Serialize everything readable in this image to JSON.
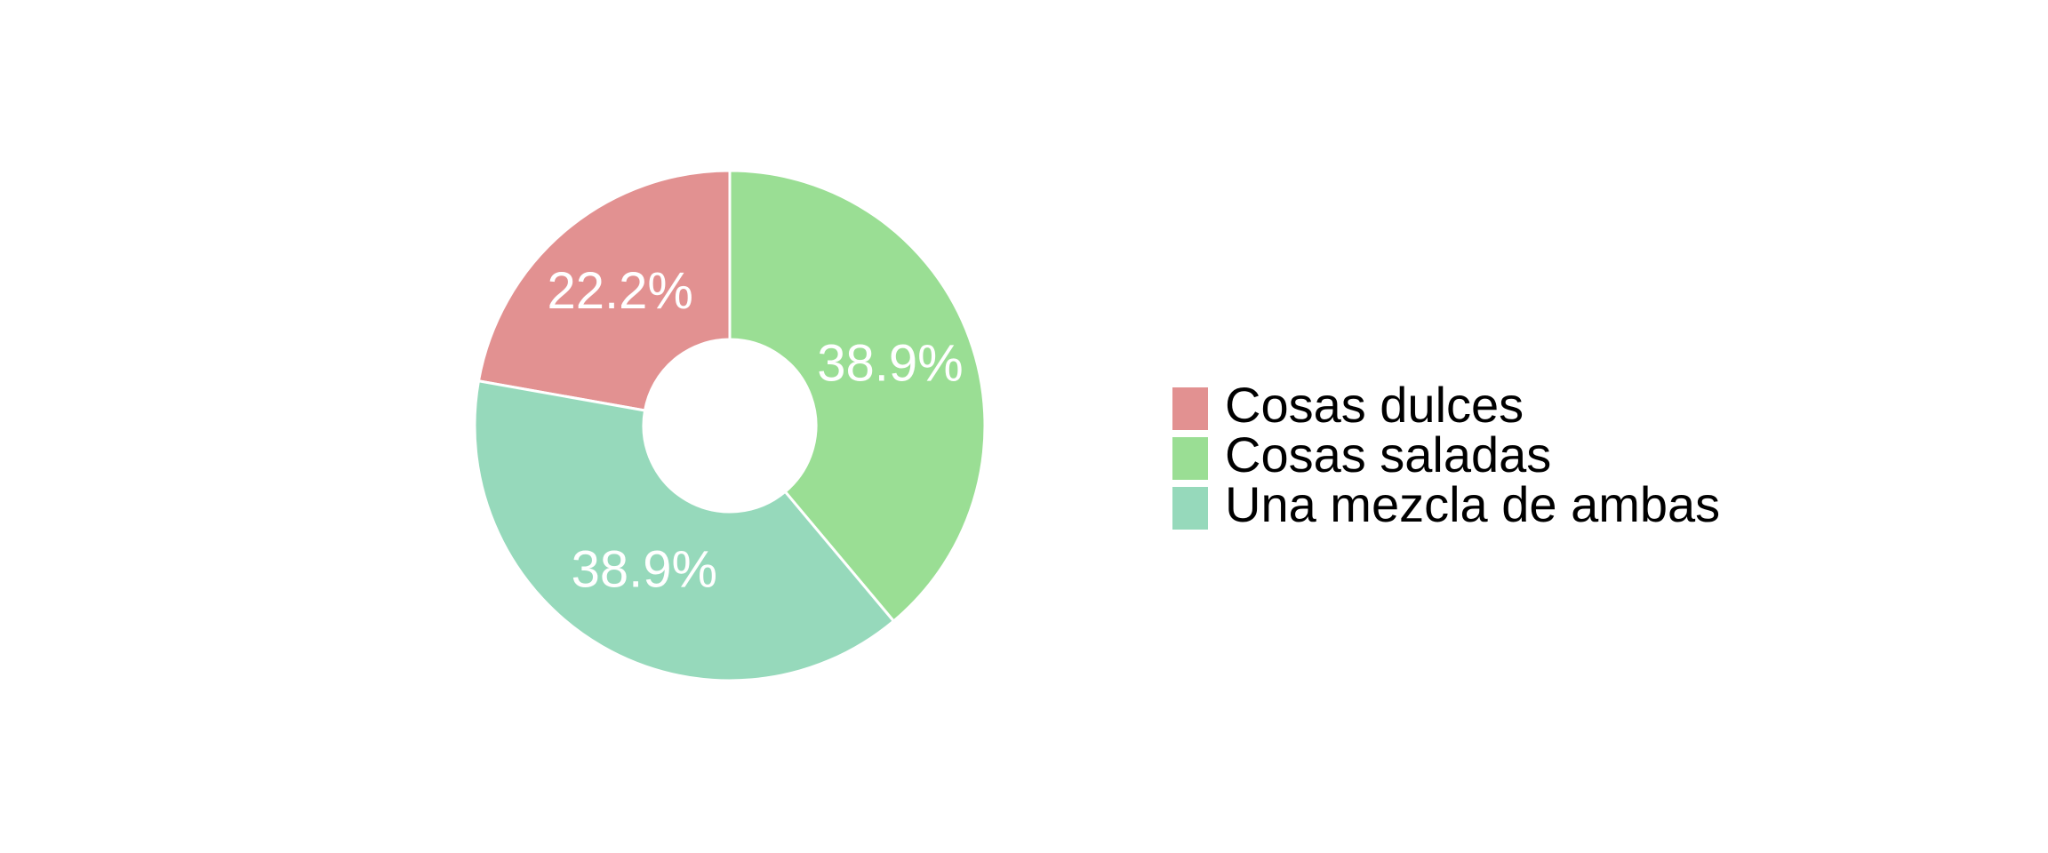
{
  "chart_data": {
    "type": "pie",
    "categories": [
      "Cosas dulces",
      "Cosas saladas",
      "Una mezcla de ambas"
    ],
    "values": [
      22.2,
      38.9,
      38.9
    ],
    "value_labels": [
      "22.2%",
      "38.9%",
      "38.9%"
    ],
    "colors": [
      "#e29191",
      "#9ade94",
      "#96d9bb"
    ],
    "legend": "right"
  }
}
